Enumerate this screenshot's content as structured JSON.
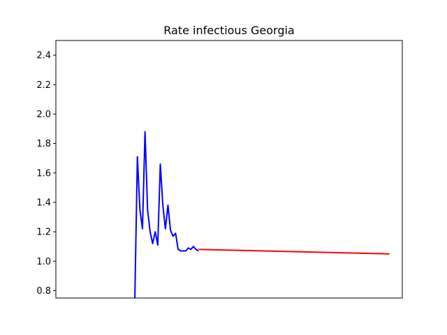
{
  "chart_data": {
    "type": "line",
    "title": "Rate infectious Georgia",
    "xlabel": "",
    "ylabel": "",
    "x_ticks_visible": false,
    "ylim": [
      0.75,
      2.5
    ],
    "xlim": [
      -17,
      119
    ],
    "y_ticks": [
      0.8,
      1.0,
      1.2,
      1.4,
      1.6,
      1.8,
      2.0,
      2.2,
      2.4
    ],
    "y_tick_labels": [
      "0.8",
      "1.0",
      "1.2",
      "1.4",
      "1.6",
      "1.8",
      "2.0",
      "2.2",
      "2.4"
    ],
    "grid": false,
    "legend": "none",
    "series": [
      {
        "color": "#0000ff",
        "x": [
          14,
          15,
          16,
          17,
          18,
          19,
          20,
          21,
          22,
          23,
          24,
          25,
          26,
          27,
          28,
          29,
          30,
          31,
          32,
          33,
          34,
          35,
          36,
          37,
          38,
          39
        ],
        "y": [
          0.75,
          1.71,
          1.35,
          1.22,
          1.88,
          1.35,
          1.2,
          1.12,
          1.2,
          1.11,
          1.66,
          1.38,
          1.22,
          1.38,
          1.21,
          1.17,
          1.19,
          1.08,
          1.07,
          1.07,
          1.07,
          1.09,
          1.08,
          1.1,
          1.08,
          1.07
        ]
      },
      {
        "color": "#ff0000",
        "x": [
          39,
          114
        ],
        "y": [
          1.08,
          1.05
        ]
      }
    ]
  }
}
